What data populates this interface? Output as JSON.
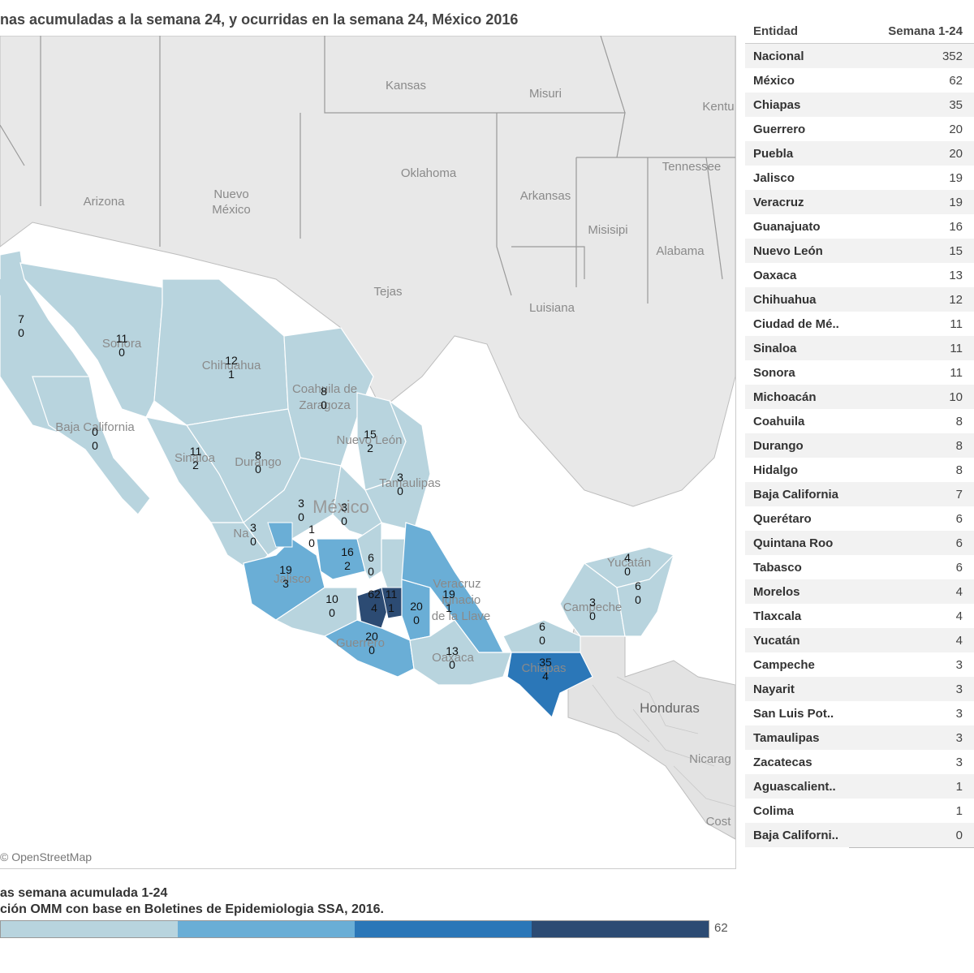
{
  "title": "nas acumuladas a la semana 24, y ocurridas en la semana 24, México 2016",
  "credit": "© OpenStreetMap",
  "legend": {
    "title": "as semana acumulada 1-24",
    "source": "ción OMM con base en Boletines de Epidemiologia SSA, 2016.",
    "max_value": "62",
    "colors": [
      "#b8d4de",
      "#6aaed6",
      "#2b77b8",
      "#2c4b73"
    ]
  },
  "table": {
    "headers": [
      "Entidad",
      "Semana 1-24"
    ],
    "rows": [
      {
        "name": "Nacional",
        "value": "352"
      },
      {
        "name": "México",
        "value": "62"
      },
      {
        "name": "Chiapas",
        "value": "35"
      },
      {
        "name": "Guerrero",
        "value": "20"
      },
      {
        "name": "Puebla",
        "value": "20"
      },
      {
        "name": "Jalisco",
        "value": "19"
      },
      {
        "name": "Veracruz",
        "value": "19"
      },
      {
        "name": "Guanajuato",
        "value": "16"
      },
      {
        "name": "Nuevo León",
        "value": "15"
      },
      {
        "name": "Oaxaca",
        "value": "13"
      },
      {
        "name": "Chihuahua",
        "value": "12"
      },
      {
        "name": "Ciudad de Mé..",
        "value": "11"
      },
      {
        "name": "Sinaloa",
        "value": "11"
      },
      {
        "name": "Sonora",
        "value": "11"
      },
      {
        "name": "Michoacán",
        "value": "10"
      },
      {
        "name": "Coahuila",
        "value": "8"
      },
      {
        "name": "Durango",
        "value": "8"
      },
      {
        "name": "Hidalgo",
        "value": "8"
      },
      {
        "name": "Baja California",
        "value": "7"
      },
      {
        "name": "Querétaro",
        "value": "6"
      },
      {
        "name": "Quintana Roo",
        "value": "6"
      },
      {
        "name": "Tabasco",
        "value": "6"
      },
      {
        "name": "Morelos",
        "value": "4"
      },
      {
        "name": "Tlaxcala",
        "value": "4"
      },
      {
        "name": "Yucatán",
        "value": "4"
      },
      {
        "name": "Campeche",
        "value": "3"
      },
      {
        "name": "Nayarit",
        "value": "3"
      },
      {
        "name": "San Luis Pot..",
        "value": "3"
      },
      {
        "name": "Tamaulipas",
        "value": "3"
      },
      {
        "name": "Zacatecas",
        "value": "3"
      },
      {
        "name": "Aguascalient..",
        "value": "1"
      },
      {
        "name": "Colima",
        "value": "1"
      },
      {
        "name": "Baja Californi..",
        "value": "0"
      }
    ]
  },
  "geo_labels": [
    {
      "text": "Kansas"
    },
    {
      "text": "Misuri"
    },
    {
      "text": "Kentu"
    },
    {
      "text": "Oklahoma"
    },
    {
      "text": "Tennessee"
    },
    {
      "text": "Arizona"
    },
    {
      "text": "Nuevo"
    },
    {
      "text": "México"
    },
    {
      "text": "Arkansas"
    },
    {
      "text": "Misisipi"
    },
    {
      "text": "Alabama"
    },
    {
      "text": "Tejas"
    },
    {
      "text": "Luisiana"
    },
    {
      "text": "Sonora"
    },
    {
      "text": "Chihuahua"
    },
    {
      "text": "Coahuila de"
    },
    {
      "text": "Zaragoza"
    },
    {
      "text": "Baja California"
    },
    {
      "text": "Nuevo León"
    },
    {
      "text": "Durango"
    },
    {
      "text": "Sinaloa"
    },
    {
      "text": "Tamaulipas"
    },
    {
      "text": "México"
    },
    {
      "text": "Jalisco"
    },
    {
      "text": "Veracruz"
    },
    {
      "text": "Ignacio"
    },
    {
      "text": "de la Llave"
    },
    {
      "text": "Guerrero"
    },
    {
      "text": "Oaxaca"
    },
    {
      "text": "Campeche"
    },
    {
      "text": "Yucatán"
    },
    {
      "text": "Chiapas"
    },
    {
      "text": "Honduras"
    },
    {
      "text": "Nicarag"
    },
    {
      "text": "Cost"
    },
    {
      "text": "Na"
    }
  ],
  "state_labels": [
    {
      "a": "7",
      "b": "0"
    },
    {
      "a": "11",
      "b": "0"
    },
    {
      "a": "12",
      "b": "1"
    },
    {
      "a": "8",
      "b": "0"
    },
    {
      "a": "0",
      "b": "0"
    },
    {
      "a": "15",
      "b": "2"
    },
    {
      "a": "11",
      "b": "2"
    },
    {
      "a": "8",
      "b": "0"
    },
    {
      "a": "3",
      "b": "0"
    },
    {
      "a": "3",
      "b": "0"
    },
    {
      "a": "3",
      "b": "0"
    },
    {
      "a": "3",
      "b": "0"
    },
    {
      "a": "1",
      "b": "0"
    },
    {
      "a": "16",
      "b": "2"
    },
    {
      "a": "6",
      "b": "0"
    },
    {
      "a": "19",
      "b": "3"
    },
    {
      "a": "10",
      "b": "0"
    },
    {
      "a": "62",
      "b": "4"
    },
    {
      "a": "11",
      "b": "1"
    },
    {
      "a": "20",
      "b": "0"
    },
    {
      "a": "19",
      "b": "1"
    },
    {
      "a": "20",
      "b": "0"
    },
    {
      "a": "13",
      "b": "0"
    },
    {
      "a": "6",
      "b": "0"
    },
    {
      "a": "35",
      "b": "4"
    },
    {
      "a": "3",
      "b": "0"
    },
    {
      "a": "4",
      "b": "0"
    },
    {
      "a": "6",
      "b": "0"
    }
  ]
}
